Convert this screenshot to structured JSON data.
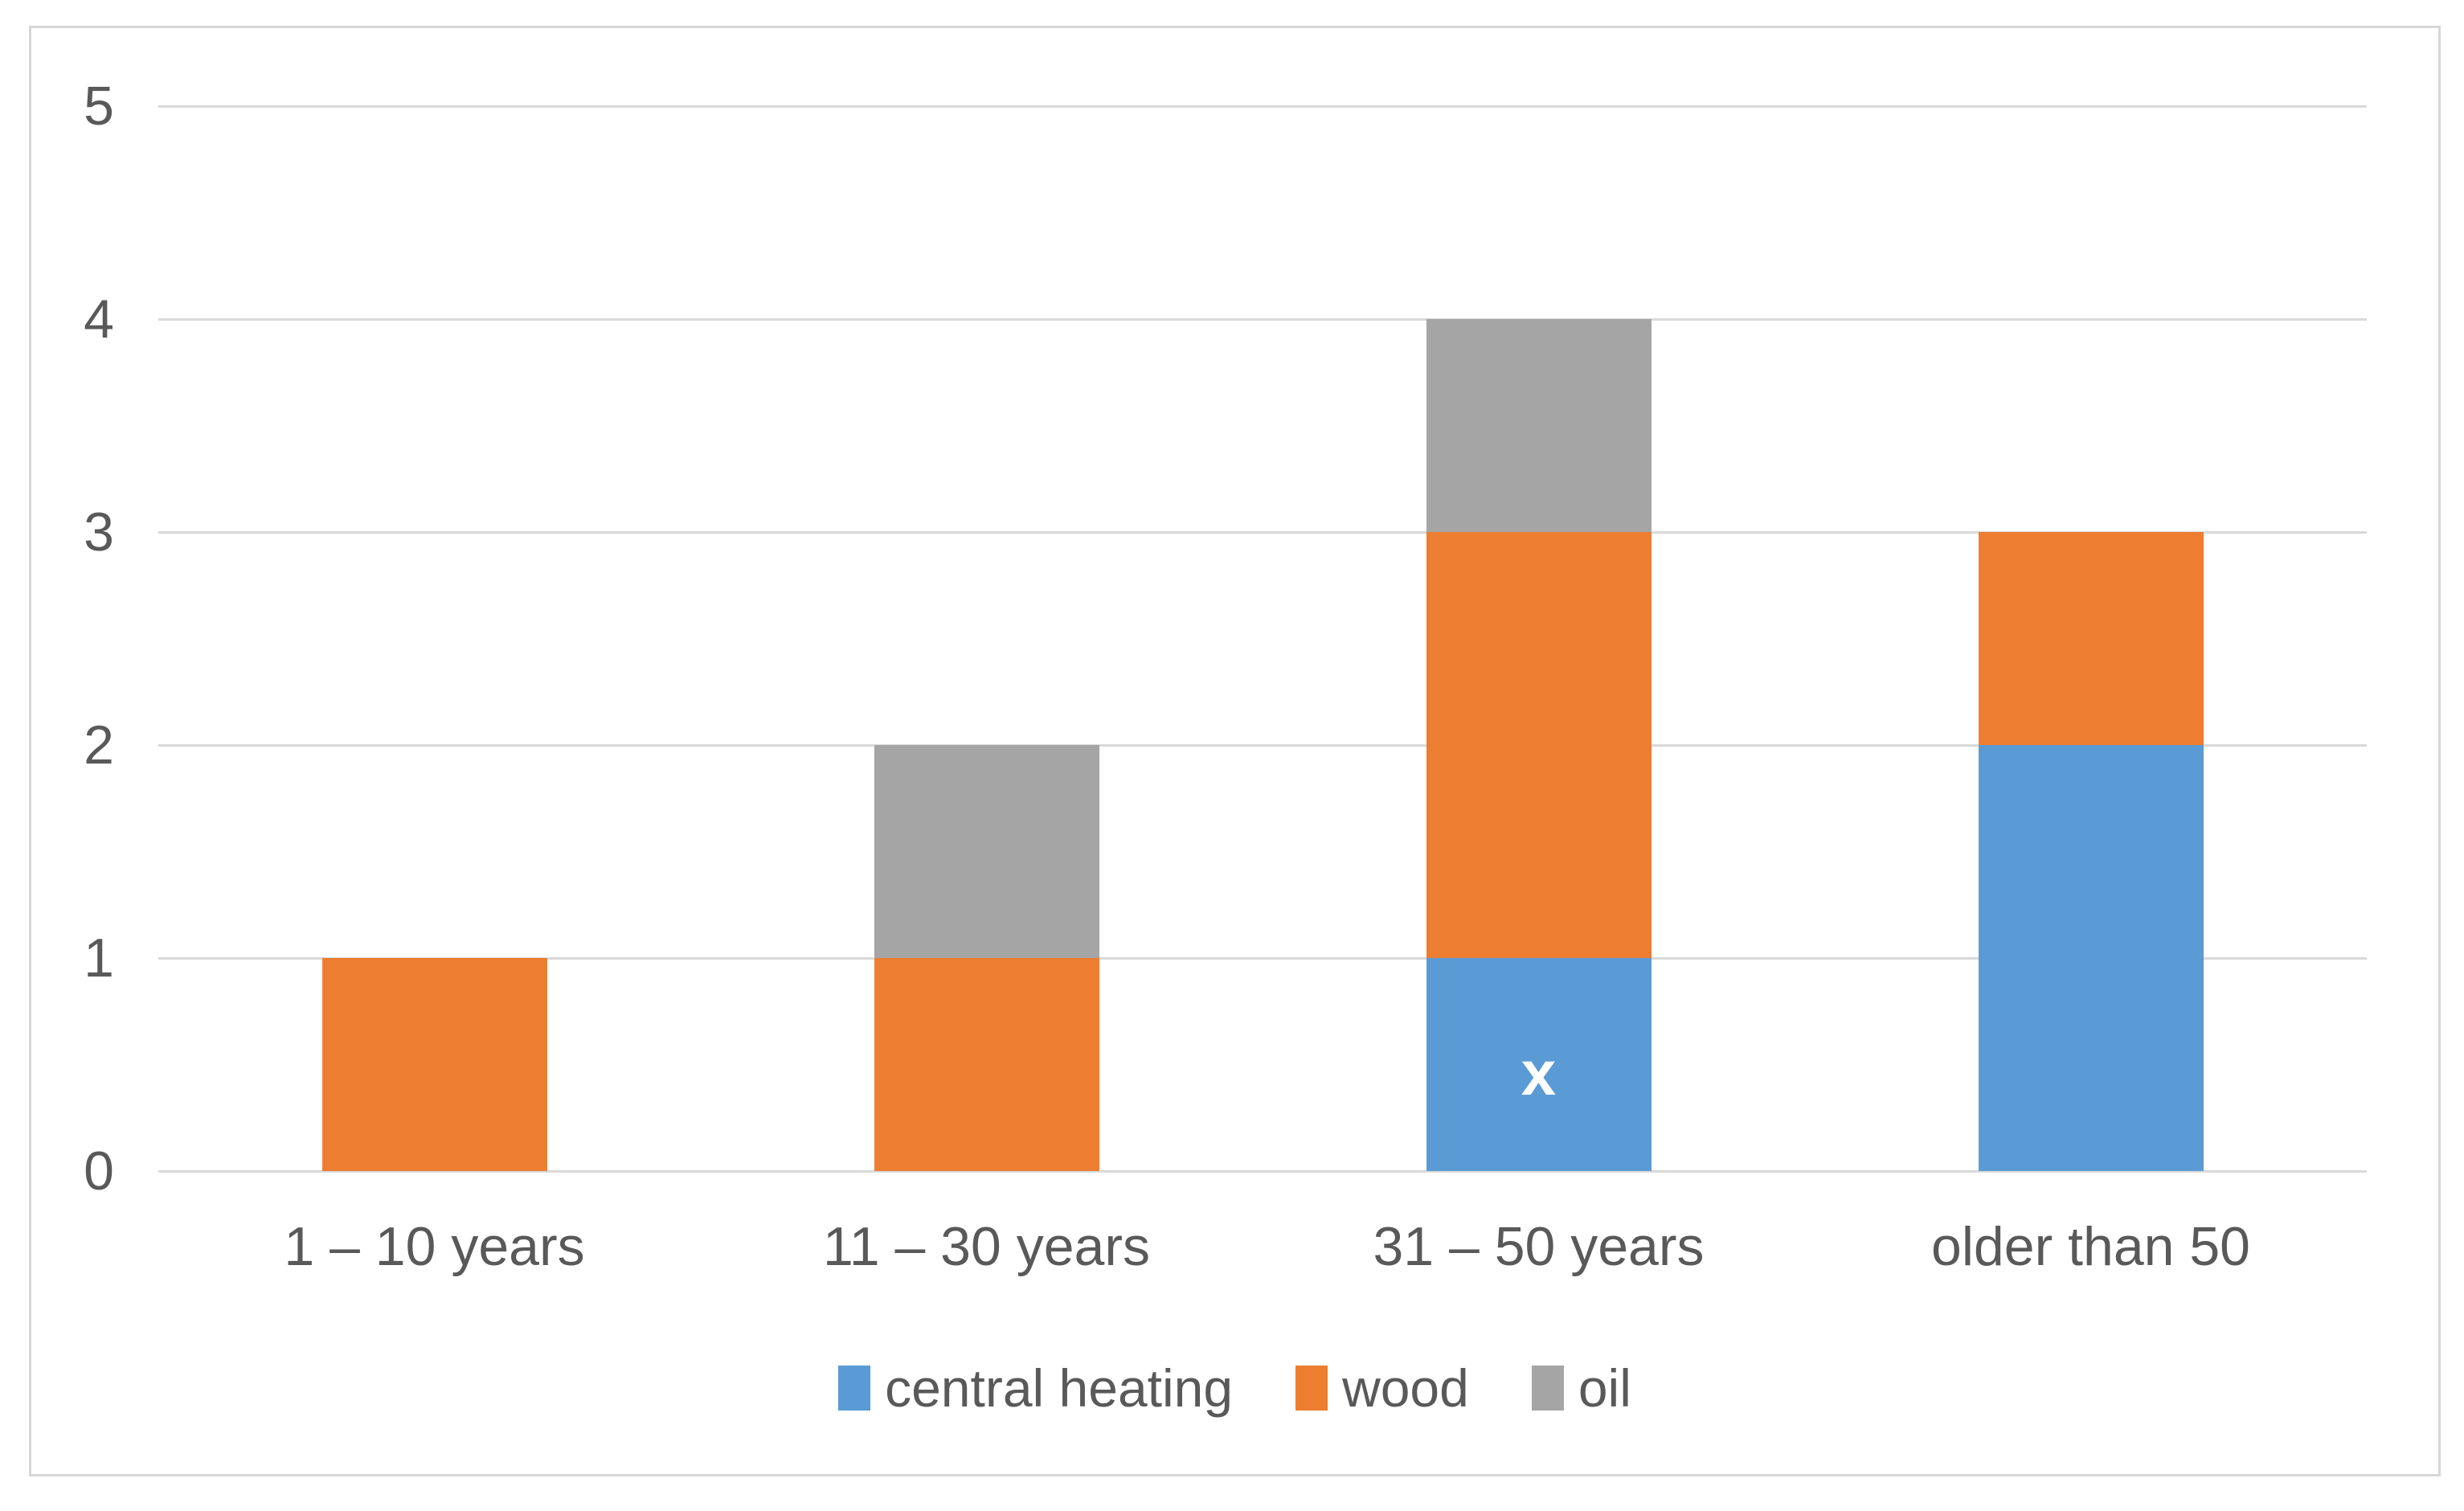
{
  "chart_data": {
    "type": "bar",
    "stacked": true,
    "title": "",
    "xlabel": "",
    "ylabel": "",
    "categories": [
      "1 – 10 years",
      "11 – 30 years",
      "31 – 50 years",
      "older than 50"
    ],
    "series": [
      {
        "name": "central heating",
        "color": "#5B9BD5",
        "values": [
          0,
          0,
          1,
          2
        ]
      },
      {
        "name": "wood",
        "color": "#ED7D31",
        "values": [
          1,
          1,
          2,
          1
        ]
      },
      {
        "name": "oil",
        "color": "#A5A5A5",
        "values": [
          0,
          1,
          1,
          0
        ]
      }
    ],
    "y_axis": {
      "min": 0,
      "max": 5,
      "tick_interval": 1,
      "tick_labels": [
        "0",
        "1",
        "2",
        "3",
        "4",
        "5"
      ]
    },
    "grid": true,
    "legend": {
      "position": "bottom",
      "items": [
        "central heating",
        "wood",
        "oil"
      ]
    },
    "annotations": [
      {
        "text": "x",
        "category_index": 2,
        "series_name": "central heating",
        "color": "#FFFFFF"
      }
    ],
    "colors": {
      "gridline": "#D9D9D9",
      "chart_border": "#D6D6D6",
      "axis_text": "#595959",
      "legend_text": "#595959",
      "background": "#FFFFFF"
    }
  }
}
